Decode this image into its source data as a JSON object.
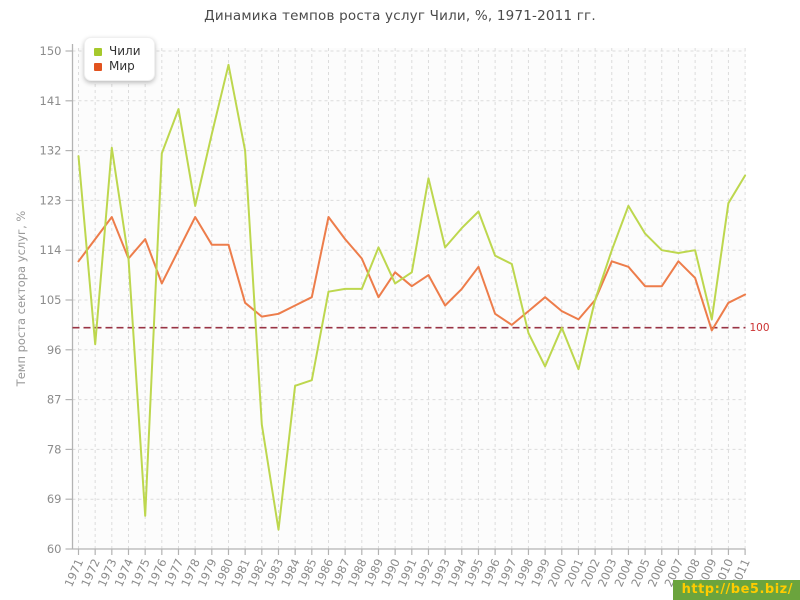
{
  "title": "Динамика темпов роста услуг Чили, %, 1971-2011 гг.",
  "legend": {
    "items": [
      {
        "label": "Чили",
        "color": "#a6c92c"
      },
      {
        "label": "Мир",
        "color": "#e2531f"
      }
    ]
  },
  "watermark": {
    "text": "http://be5.biz/",
    "bg": "#6ba43d",
    "color": "#ffcc00"
  },
  "chart_data": {
    "type": "line",
    "title": "Динамика темпов роста услуг Чили, %, 1971-2011 гг.",
    "xlabel": "",
    "ylabel": "Темп роста сектора услуг, %",
    "ylim": [
      60,
      150
    ],
    "yticks": [
      60,
      69,
      78,
      87,
      96,
      105,
      114,
      123,
      132,
      141,
      150
    ],
    "grid": true,
    "legend_position": "top-left",
    "x": [
      1971,
      1972,
      1973,
      1974,
      1975,
      1976,
      1977,
      1978,
      1979,
      1980,
      1981,
      1982,
      1983,
      1984,
      1985,
      1986,
      1987,
      1988,
      1989,
      1990,
      1991,
      1992,
      1993,
      1994,
      1995,
      1996,
      1997,
      1998,
      1999,
      2000,
      2001,
      2002,
      2003,
      2004,
      2005,
      2006,
      2007,
      2008,
      2009,
      2010,
      2011
    ],
    "series": [
      {
        "name": "Чили",
        "color": "#bdd74e",
        "values": [
          131,
          97,
          132.5,
          112.5,
          66,
          131.5,
          139.5,
          122,
          135,
          147.5,
          132,
          82.5,
          63.5,
          89.5,
          90.5,
          106.5,
          107,
          107,
          114.5,
          108,
          110,
          127,
          114.5,
          118,
          121,
          113,
          111.5,
          99,
          93,
          100,
          92.5,
          105,
          114,
          122,
          117,
          114,
          113.5,
          114,
          101.5,
          122.5,
          127.5
        ]
      },
      {
        "name": "Мир",
        "color": "#ed7d4b",
        "values": [
          112,
          116,
          120,
          112.5,
          116,
          108,
          114,
          120,
          115,
          115,
          104.5,
          102,
          102.5,
          104,
          105.5,
          120,
          116,
          112.5,
          105.5,
          110,
          107.5,
          109.5,
          104,
          107,
          111,
          102.5,
          100.5,
          103,
          105.5,
          103,
          101.5,
          105,
          112,
          111,
          107.5,
          107.5,
          112,
          109,
          99.5,
          104.5,
          106
        ]
      }
    ],
    "guide": {
      "value": 100,
      "label": "100",
      "color": "#993344",
      "label_color": "#cc3333"
    },
    "colors": {
      "grid": "#dcdcdc",
      "axis": "#b3b3b3",
      "tick_text": "#8c8c8c",
      "plot_bg": "#fcfcfc"
    }
  }
}
